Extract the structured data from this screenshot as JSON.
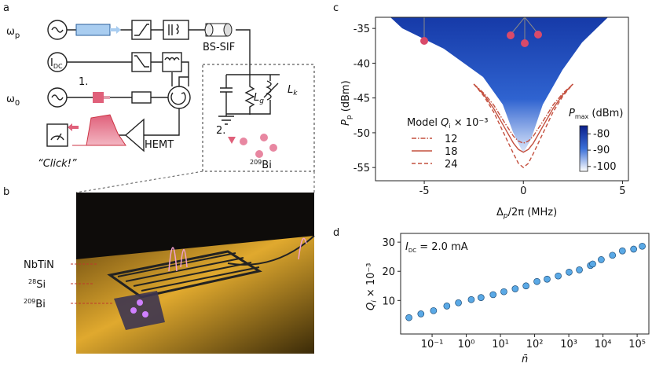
{
  "panel_labels": [
    "a",
    "b",
    "c",
    "d"
  ],
  "diagram": {
    "omega_p": {
      "symbol": "ω",
      "subscript": "p"
    },
    "i_dc": {
      "symbol": "I",
      "subscript": "DC"
    },
    "omega_0": {
      "symbol": "ω",
      "subscript": "0"
    },
    "step_1": "1.",
    "step_2": "2.",
    "click": "“Click!”",
    "hemt": "HEMT",
    "bs_sif": "BS-SIF",
    "l_g": {
      "symbol": "L",
      "subscript": "g"
    },
    "l_k": {
      "symbol": "L",
      "subscript": "k"
    },
    "bi": {
      "mass": "209",
      "element": "Bi"
    }
  },
  "device": {
    "nbtin": "NbTiN",
    "si": {
      "mass": "28",
      "element": "Si"
    },
    "bi": {
      "mass": "209",
      "element": "Bi"
    }
  },
  "chart_data": [
    {
      "type": "heatmap",
      "xlabel": {
        "symbol": "Δ",
        "subscript": "p",
        "suffix": "/2π (MHz)"
      },
      "ylabel": {
        "symbol": "P",
        "subscript": "p",
        "suffix": " (dBm)"
      },
      "xlim": [
        -7.46,
        5.3
      ],
      "ylim": [
        -56.9,
        -33.4
      ],
      "xticks": [
        -5,
        0,
        5
      ],
      "yticks": [
        -35,
        -40,
        -45,
        -50,
        -55
      ],
      "colorbar": {
        "label": {
          "symbol": "P",
          "subscript": "max",
          "suffix": " (dBm)"
        },
        "clim": [
          -103,
          -75
        ],
        "ticks": [
          -80,
          -90,
          -100
        ],
        "colors": [
          "#ffffff",
          "#3a6fd8",
          "#0b1f8a"
        ]
      },
      "legend_title": {
        "prefix": "Model ",
        "symbol": "Q",
        "subscript": "i",
        "suffix": " × 10⁻³"
      },
      "x": [
        -2.5,
        -2,
        -1.5,
        -1,
        -0.5,
        -0.25,
        0,
        0.25,
        0.5,
        1,
        1.5,
        2,
        2.5
      ],
      "series": [
        {
          "name": "12",
          "color": "#c4503f",
          "dash": "dashdot",
          "values": [
            -43,
            -44.3,
            -46,
            -48.3,
            -50.5,
            -51.2,
            -51.5,
            -51.2,
            -50.5,
            -48.3,
            -46,
            -44.3,
            -43
          ]
        },
        {
          "name": "18",
          "color": "#c4503f",
          "dash": "solid",
          "values": [
            -43,
            -44.5,
            -46.5,
            -49,
            -51.5,
            -52.4,
            -52.8,
            -52.4,
            -51.5,
            -49,
            -46.5,
            -44.5,
            -43
          ]
        },
        {
          "name": "24",
          "color": "#c4503f",
          "dash": "dashed",
          "values": [
            -43,
            -44.7,
            -47,
            -50,
            -53,
            -54.4,
            -55,
            -54.4,
            -53,
            -50,
            -47,
            -44.7,
            -43
          ]
        }
      ]
    },
    {
      "type": "scatter",
      "xlabel": "n̄",
      "ylabel": {
        "symbol": "Q",
        "subscript": "i",
        "suffix": " × 10⁻³"
      },
      "annotation": {
        "symbol": "I",
        "subscript": "DC",
        "suffix": " = 2.0 mA"
      },
      "xscale": "log",
      "xlim": [
        0.012,
        220000
      ],
      "ylim": [
        -1.5,
        33
      ],
      "xticks": [
        {
          "value": 0.1,
          "label": "10⁻¹"
        },
        {
          "value": 1,
          "label": "10⁰"
        },
        {
          "value": 10,
          "label": "10¹"
        },
        {
          "value": 100,
          "label": "10²"
        },
        {
          "value": 1000,
          "label": "10³"
        },
        {
          "value": 10000,
          "label": "10⁴"
        },
        {
          "value": 100000,
          "label": "10⁵"
        }
      ],
      "yticks": [
        10,
        20,
        30
      ],
      "series": [
        {
          "color": "#5aa9e6",
          "x": [
            0.021,
            0.047,
            0.11,
            0.27,
            0.59,
            1.4,
            2.7,
            6.1,
            12.6,
            27,
            56,
            117,
            232,
            490,
            1020,
            2040,
            4300,
            5000,
            8900,
            19000,
            37000,
            79000,
            141000
          ],
          "values": [
            4.1,
            5.4,
            6.5,
            8.1,
            9.2,
            10.3,
            11,
            12,
            13,
            14,
            15,
            16.5,
            17.3,
            18.4,
            19.7,
            20.5,
            22,
            22.5,
            24,
            25.5,
            27,
            27.6,
            28.6
          ]
        }
      ]
    }
  ]
}
